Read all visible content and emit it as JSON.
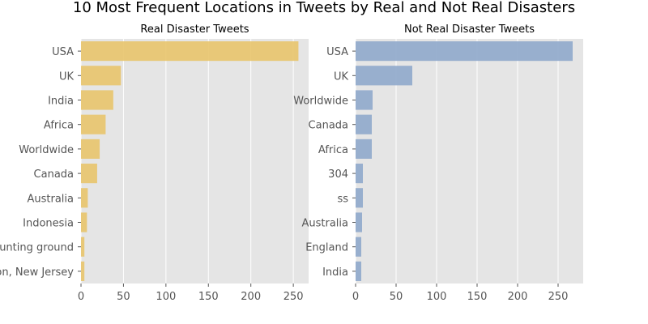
{
  "figure": {
    "title": "10 Most Frequent Locations in Tweets by Real and Not Real Disasters"
  },
  "chart_data": [
    {
      "type": "bar",
      "orientation": "horizontal",
      "title": "Real Disaster Tweets",
      "categories": [
        "USA",
        "UK",
        "India",
        "Africa",
        "Worldwide",
        "Canada",
        "Australia",
        "Indonesia",
        "the hunting ground",
        "Trenton, New Jersey"
      ],
      "values": [
        256,
        47,
        38,
        29,
        22,
        19,
        8,
        7,
        4,
        4
      ],
      "xlim": [
        0,
        268
      ],
      "xticks": [
        0,
        50,
        100,
        150,
        200,
        250
      ],
      "grid": true,
      "color": "#e8c46b"
    },
    {
      "type": "bar",
      "orientation": "horizontal",
      "title": "Not Real Disaster Tweets",
      "categories": [
        "USA",
        "UK",
        "Worldwide",
        "Canada",
        "Africa",
        "304",
        "ss",
        "Australia",
        "England",
        "India"
      ],
      "values": [
        268,
        70,
        21,
        20,
        20,
        9,
        9,
        8,
        7,
        7
      ],
      "xlim": [
        0,
        281
      ],
      "xticks": [
        0,
        50,
        100,
        150,
        200,
        250
      ],
      "grid": true,
      "color": "#8fa9cb"
    }
  ]
}
